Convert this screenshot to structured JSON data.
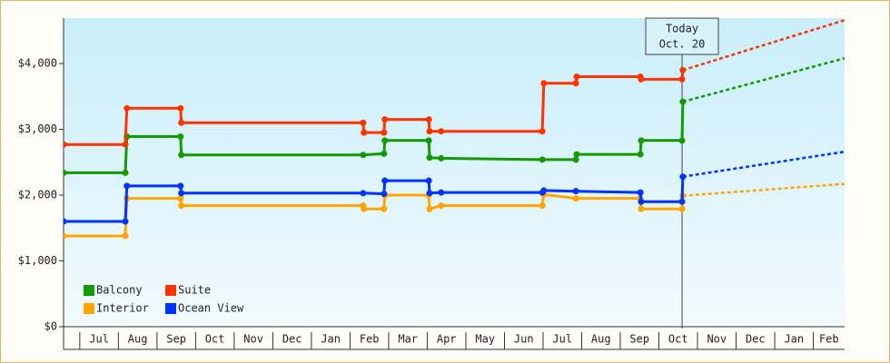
{
  "chart_data": {
    "type": "line",
    "ylim": [
      0,
      4690
    ],
    "yticks": [
      {
        "value": 0,
        "label": "$0"
      },
      {
        "value": 1000,
        "label": "$1,000"
      },
      {
        "value": 2000,
        "label": "$2,000"
      },
      {
        "value": 3000,
        "label": "$3,000"
      },
      {
        "value": 4000,
        "label": "$4,000"
      }
    ],
    "xlim": [
      -0.42,
      19.81
    ],
    "xticks": [
      {
        "value": 0,
        "label": "Jul"
      },
      {
        "value": 1,
        "label": "Aug"
      },
      {
        "value": 2,
        "label": "Sep"
      },
      {
        "value": 3,
        "label": "Oct"
      },
      {
        "value": 4,
        "label": "Nov"
      },
      {
        "value": 5,
        "label": "Dec"
      },
      {
        "value": 6,
        "label": "Jan"
      },
      {
        "value": 7,
        "label": "Feb"
      },
      {
        "value": 8,
        "label": "Mar"
      },
      {
        "value": 9,
        "label": "Apr"
      },
      {
        "value": 10,
        "label": "May"
      },
      {
        "value": 11,
        "label": "Jun"
      },
      {
        "value": 12,
        "label": "Jul"
      },
      {
        "value": 13,
        "label": "Aug"
      },
      {
        "value": 14,
        "label": "Sep"
      },
      {
        "value": 15,
        "label": "Oct"
      },
      {
        "value": 16,
        "label": "Nov"
      },
      {
        "value": 17,
        "label": "Dec"
      },
      {
        "value": 18,
        "label": "Jan"
      },
      {
        "value": 19,
        "label": "Feb"
      }
    ],
    "annotation": {
      "x": 15.6,
      "lines": [
        "Today",
        "Oct. 20"
      ]
    },
    "series": [
      {
        "name": "Balcony",
        "color": "#139a00",
        "x": [
          -0.42,
          1.18,
          1.22,
          2.61,
          2.63,
          7.34,
          7.88,
          7.9,
          9.04,
          9.06,
          9.36,
          11.98,
          12.85,
          12.87,
          14.52,
          14.54,
          15.6,
          15.62
        ],
        "values": [
          2340,
          2340,
          2890,
          2890,
          2610,
          2610,
          2630,
          2830,
          2830,
          2570,
          2560,
          2540,
          2540,
          2620,
          2620,
          2830,
          2830,
          3420
        ],
        "projection": {
          "x": [
            15.62,
            19.81
          ],
          "values": [
            3420,
            4080
          ]
        }
      },
      {
        "name": "Suite",
        "color": "#ff3300",
        "x": [
          -0.42,
          1.18,
          1.22,
          2.61,
          2.63,
          7.34,
          7.36,
          7.88,
          7.9,
          9.04,
          9.06,
          9.36,
          11.98,
          12.02,
          12.85,
          12.87,
          14.52,
          14.54,
          15.6,
          15.62
        ],
        "values": [
          2770,
          2770,
          3320,
          3320,
          3100,
          3100,
          2950,
          2950,
          3150,
          3150,
          2970,
          2970,
          2970,
          3700,
          3700,
          3800,
          3800,
          3760,
          3760,
          3900
        ],
        "projection": {
          "x": [
            15.62,
            19.81
          ],
          "values": [
            3900,
            4660
          ]
        }
      },
      {
        "name": "Interior",
        "color": "#ffa500",
        "x": [
          -0.42,
          1.18,
          1.22,
          2.61,
          2.63,
          7.34,
          7.36,
          7.88,
          7.9,
          9.04,
          9.06,
          9.36,
          11.98,
          12.02,
          12.85,
          14.52,
          14.54,
          15.6,
          15.62
        ],
        "values": [
          1380,
          1380,
          1950,
          1950,
          1840,
          1840,
          1790,
          1790,
          2000,
          2000,
          1790,
          1840,
          1840,
          2010,
          1950,
          1950,
          1790,
          1790,
          1990
        ],
        "projection": {
          "x": [
            15.62,
            19.81
          ],
          "values": [
            1990,
            2170
          ]
        }
      },
      {
        "name": "Ocean View",
        "color": "#0033ff",
        "x": [
          -0.42,
          1.18,
          1.22,
          2.61,
          2.63,
          7.34,
          7.88,
          7.9,
          9.04,
          9.06,
          9.36,
          11.98,
          12.02,
          12.85,
          14.52,
          14.54,
          15.6,
          15.62
        ],
        "values": [
          1600,
          1600,
          2140,
          2140,
          2030,
          2030,
          2020,
          2220,
          2220,
          2030,
          2040,
          2040,
          2070,
          2060,
          2040,
          1900,
          1900,
          2280
        ],
        "projection": {
          "x": [
            15.62,
            19.81
          ],
          "values": [
            2280,
            2660
          ]
        }
      }
    ]
  }
}
